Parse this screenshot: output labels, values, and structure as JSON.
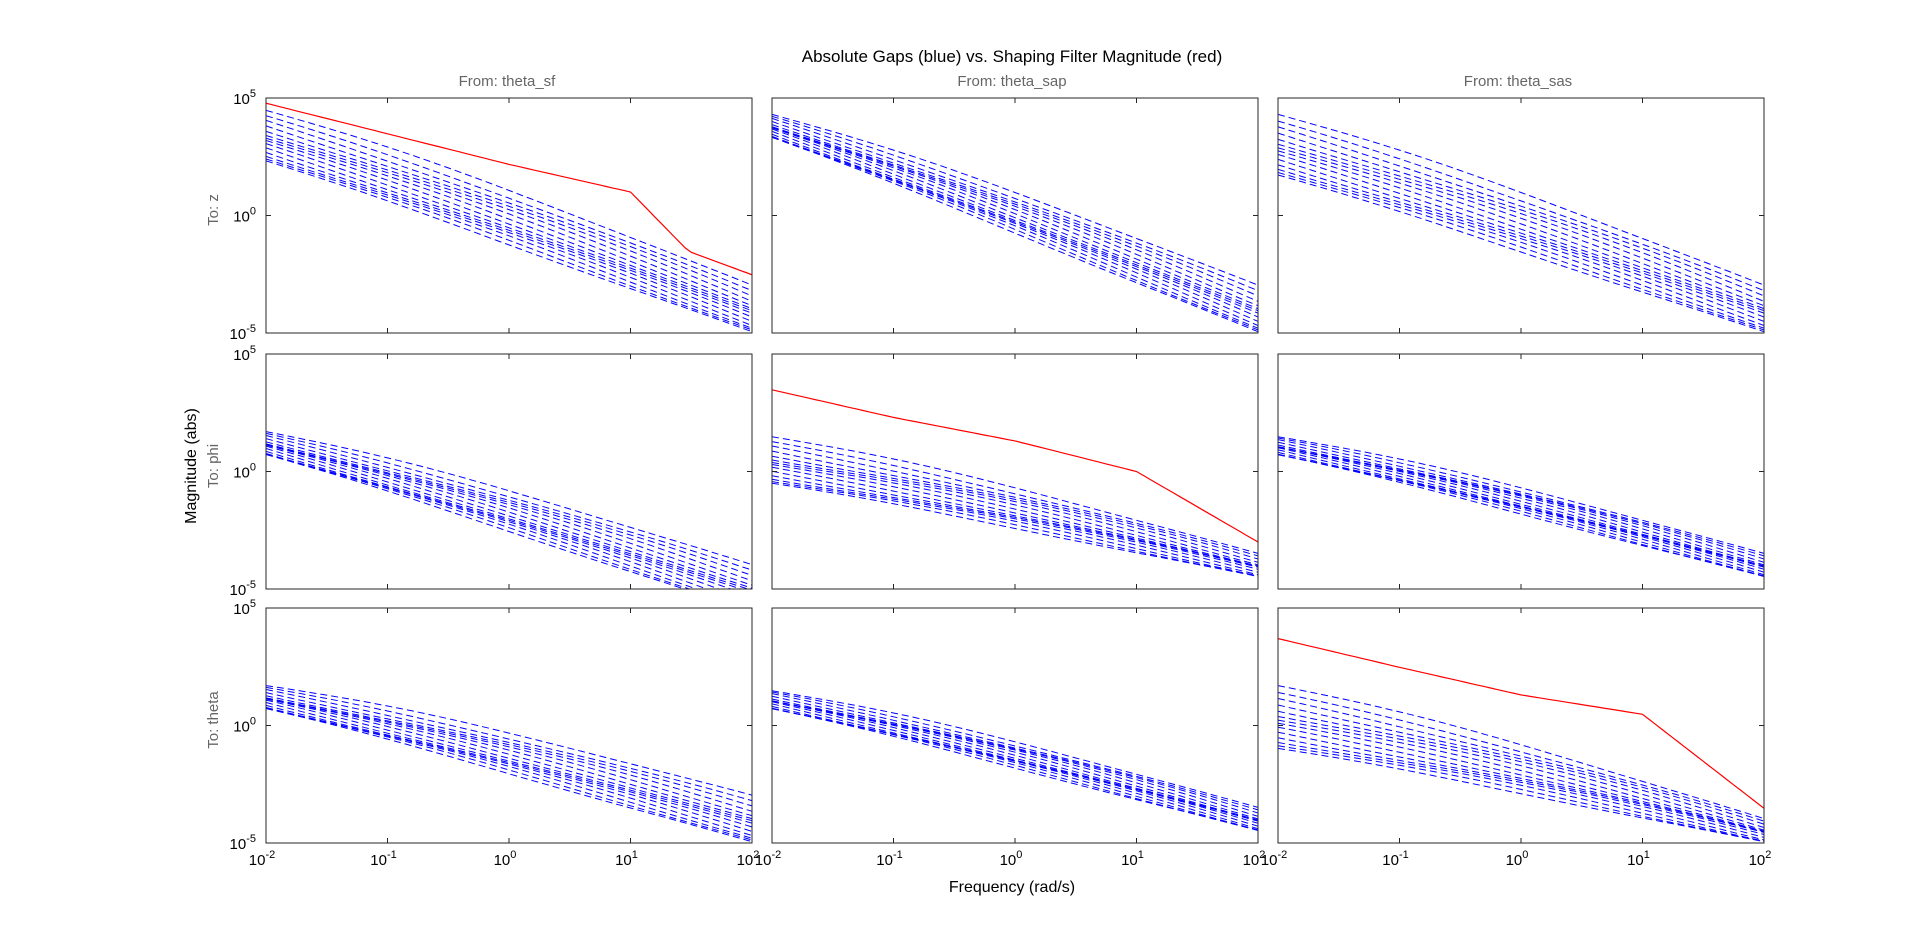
{
  "figure": {
    "title": "Absolute Gaps (blue) vs. Shaping Filter Magnitude (red)",
    "xlabel": "Frequency  (rad/s)",
    "ylabel": "Magnitude (abs)"
  },
  "columns": [
    "From: theta_sf",
    "From: theta_sap",
    "From: theta_sas"
  ],
  "rows": [
    "To: z",
    "To: phi",
    "To: theta"
  ],
  "colors": {
    "gap": "#0000ff",
    "filter": "#ff0000",
    "axis": "#262626",
    "header": "#666666"
  },
  "chart_data": {
    "type": "line",
    "x_scale": "log",
    "y_scale": "log",
    "xlim": [
      0.01,
      100
    ],
    "ylim": [
      1e-05,
      100000
    ],
    "x_ticks": [
      "10-2",
      "10-1",
      "100",
      "101",
      "102"
    ],
    "y_ticks": [
      "105",
      "100",
      "10-5"
    ],
    "legend": "none",
    "grid": false,
    "panels": [
      {
        "row": "To: z",
        "column": "From: theta_sf",
        "filter": {
          "x": [
            0.01,
            0.1,
            1,
            10,
            30,
            100
          ],
          "y": [
            60000,
            3000,
            150,
            10,
            0.03,
            0.003
          ]
        },
        "gap_range": {
          "top": [
            30000,
            0.001
          ],
          "bottom": [
            200,
            1e-05
          ]
        },
        "gap_line_count": 14
      },
      {
        "row": "To: z",
        "column": "From: theta_sap",
        "filter": null,
        "gap_range": {
          "top": [
            20000,
            0.001
          ],
          "bottom": [
            2000,
            1e-05
          ]
        },
        "gap_line_count": 14
      },
      {
        "row": "To: z",
        "column": "From: theta_sas",
        "filter": null,
        "gap_range": {
          "top": [
            20000,
            0.001
          ],
          "bottom": [
            50,
            1e-05
          ]
        },
        "gap_line_count": 14
      },
      {
        "row": "To: phi",
        "column": "From: theta_sf",
        "filter": null,
        "gap_range": {
          "top": [
            50,
            0.0001
          ],
          "bottom": [
            5,
            1e-06
          ]
        },
        "gap_line_count": 14
      },
      {
        "row": "To: phi",
        "column": "From: theta_sap",
        "filter": {
          "x": [
            0.01,
            0.1,
            1,
            10,
            100
          ],
          "y": [
            3000,
            200,
            20,
            1,
            0.001
          ]
        },
        "gap_range": {
          "top": [
            30,
            0.0003
          ],
          "bottom": [
            0.3,
            3e-05
          ]
        },
        "gap_line_count": 14
      },
      {
        "row": "To: phi",
        "column": "From: theta_sas",
        "filter": null,
        "gap_range": {
          "top": [
            30,
            0.0003
          ],
          "bottom": [
            5,
            3e-05
          ]
        },
        "gap_line_count": 14
      },
      {
        "row": "To: theta",
        "column": "From: theta_sf",
        "filter": null,
        "gap_range": {
          "top": [
            50,
            0.001
          ],
          "bottom": [
            5,
            1e-05
          ]
        },
        "gap_line_count": 14
      },
      {
        "row": "To: theta",
        "column": "From: theta_sap",
        "filter": null,
        "gap_range": {
          "top": [
            30,
            0.0003
          ],
          "bottom": [
            5,
            3e-05
          ]
        },
        "gap_line_count": 14
      },
      {
        "row": "To: theta",
        "column": "From: theta_sas",
        "filter": {
          "x": [
            0.01,
            0.1,
            1,
            10,
            100
          ],
          "y": [
            5000,
            300,
            20,
            3,
            0.0003
          ]
        },
        "gap_range": {
          "top": [
            50,
            0.0001
          ],
          "bottom": [
            0.1,
            1e-05
          ]
        },
        "gap_line_count": 14
      }
    ]
  }
}
